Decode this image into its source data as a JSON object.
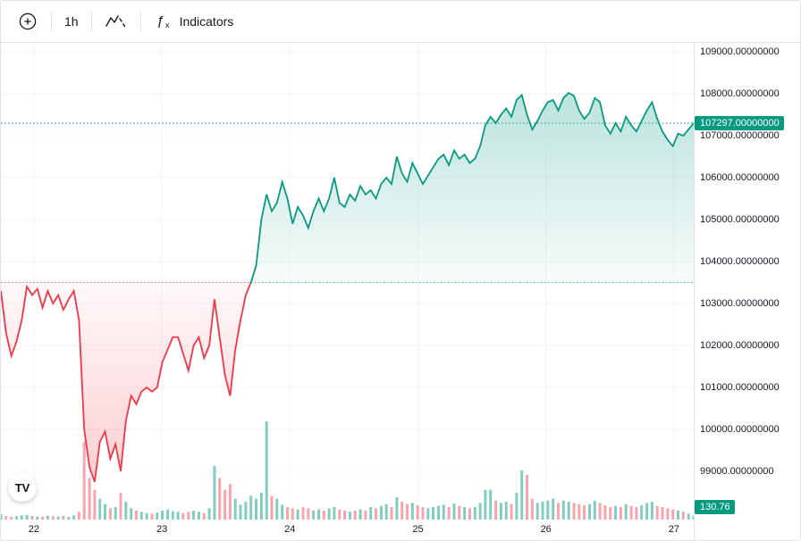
{
  "toolbar": {
    "interval": "1h",
    "indicators_label": "Indicators"
  },
  "icons": {
    "add_icon": "circle-plus",
    "chart_style_icon": "zigzag-line",
    "function_icon": "fx",
    "logo": "tradingview-mark"
  },
  "price_axis": {
    "labels": [
      "109000.00000000",
      "108000.00000000",
      "107000.00000000",
      "106000.00000000",
      "105000.00000000",
      "104000.00000000",
      "103000.00000000",
      "102000.00000000",
      "101000.00000000",
      "100000.00000000",
      "99000.00000000"
    ],
    "current_price_label": "107297.00000000",
    "volume_label": "130.76"
  },
  "colors": {
    "up": "#089981",
    "down": "#F23645",
    "grid": "#f0f3fa",
    "text": "#131722",
    "border": "#e0e3eb"
  },
  "chart_data": {
    "type": "area",
    "style": "baseline",
    "title": "",
    "xlabel": "",
    "ylabel": "",
    "x_tick_labels": [
      "22",
      "23",
      "24",
      "25",
      "26",
      "27"
    ],
    "day_ticks": [
      22,
      23,
      24,
      25,
      26,
      27
    ],
    "time_start": 21.742,
    "time_end": 27.154,
    "baseline": 103500,
    "ylim": [
      97300,
      109200
    ],
    "y_ticks": [
      109000,
      108000,
      107000,
      106000,
      105000,
      104000,
      103000,
      102000,
      101000,
      100000,
      99000
    ],
    "current_price": 107297,
    "last_volume": 130.76,
    "prices": [
      103300,
      102300,
      101750,
      102100,
      102600,
      103400,
      103200,
      103350,
      102900,
      103300,
      103000,
      103200,
      102850,
      103100,
      103300,
      102600,
      100000,
      99100,
      98750,
      99700,
      99950,
      99300,
      99650,
      99000,
      100200,
      100800,
      100600,
      100900,
      101000,
      100900,
      101000,
      101600,
      101900,
      102200,
      102200,
      101800,
      101400,
      102000,
      102200,
      101700,
      102000,
      103100,
      102200,
      101300,
      100800,
      101900,
      102600,
      103200,
      103500,
      103900,
      105000,
      105600,
      105200,
      105400,
      105900,
      105500,
      104900,
      105300,
      105100,
      104800,
      105200,
      105500,
      105200,
      105500,
      106000,
      105400,
      105300,
      105600,
      105450,
      105800,
      105600,
      105700,
      105500,
      105850,
      106000,
      105850,
      106500,
      106100,
      105900,
      106350,
      106100,
      105850,
      106050,
      106250,
      106450,
      106550,
      106300,
      106650,
      106450,
      106550,
      106350,
      106450,
      106750,
      107250,
      107450,
      107300,
      107500,
      107650,
      107450,
      107850,
      107970,
      107500,
      107150,
      107350,
      107600,
      107800,
      107850,
      107600,
      107900,
      108020,
      107950,
      107600,
      107400,
      107550,
      107900,
      107800,
      107250,
      107050,
      107300,
      107100,
      107450,
      107250,
      107100,
      107350,
      107600,
      107800,
      107400,
      107100,
      106900,
      106750,
      107050,
      107000,
      107150,
      107297
    ],
    "volumes": [
      180,
      120,
      90,
      110,
      140,
      160,
      120,
      100,
      90,
      130,
      110,
      100,
      120,
      90,
      140,
      260,
      2600,
      1400,
      1000,
      700,
      520,
      380,
      420,
      900,
      600,
      380,
      300,
      260,
      220,
      200,
      240,
      300,
      340,
      280,
      260,
      220,
      260,
      300,
      260,
      220,
      380,
      1800,
      1400,
      1000,
      1200,
      700,
      500,
      600,
      800,
      700,
      900,
      3300,
      800,
      700,
      500,
      420,
      380,
      340,
      420,
      380,
      300,
      340,
      300,
      380,
      420,
      340,
      300,
      260,
      300,
      340,
      300,
      420,
      380,
      460,
      520,
      420,
      750,
      600,
      520,
      560,
      480,
      420,
      380,
      420,
      460,
      500,
      420,
      540,
      460,
      420,
      380,
      420,
      560,
      1000,
      1000,
      640,
      560,
      600,
      520,
      900,
      1650,
      1500,
      700,
      560,
      600,
      640,
      700,
      560,
      640,
      600,
      560,
      520,
      480,
      520,
      640,
      560,
      480,
      420,
      460,
      420,
      520,
      460,
      420,
      480,
      560,
      600,
      460,
      420,
      380,
      340,
      300,
      260,
      200,
      130.76
    ]
  }
}
